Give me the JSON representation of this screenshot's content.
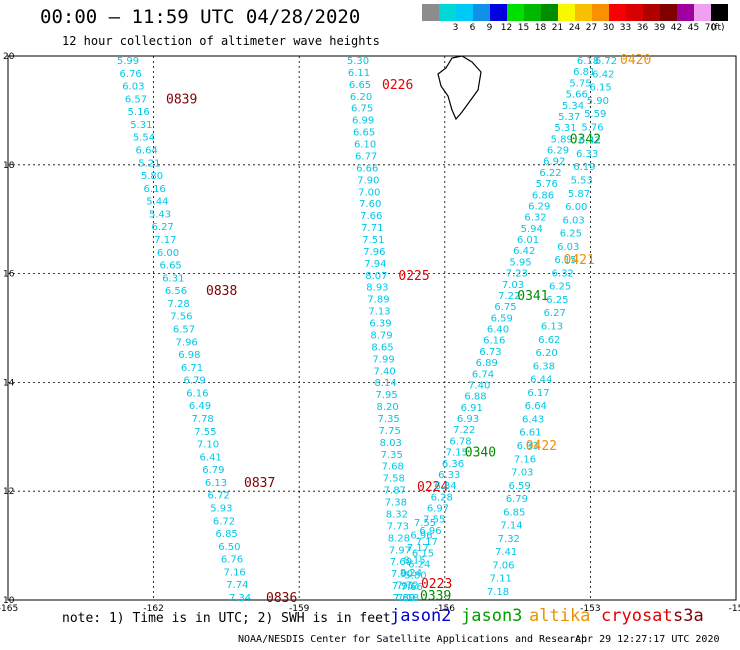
{
  "header": {
    "title": "00:00 – 11:59 UTC 04/28/2020",
    "subtitle": "12 hour collection of altimeter wave heights"
  },
  "legend": {
    "unit": "(ft)",
    "bins": [
      {
        "label": "",
        "color": "#8c8c8c"
      },
      {
        "label": "3",
        "color": "#00d8d8"
      },
      {
        "label": "6",
        "color": "#00c8f8"
      },
      {
        "label": "9",
        "color": "#1090e8"
      },
      {
        "label": "12",
        "color": "#0000e0"
      },
      {
        "label": "15",
        "color": "#00e000"
      },
      {
        "label": "18",
        "color": "#00b800"
      },
      {
        "label": "21",
        "color": "#008c00"
      },
      {
        "label": "24",
        "color": "#f8f800"
      },
      {
        "label": "27",
        "color": "#f8c000"
      },
      {
        "label": "30",
        "color": "#f89000"
      },
      {
        "label": "33",
        "color": "#f80000"
      },
      {
        "label": "36",
        "color": "#d80000"
      },
      {
        "label": "39",
        "color": "#b00000"
      },
      {
        "label": "42",
        "color": "#800000"
      },
      {
        "label": "45",
        "color": "#a000a0"
      },
      {
        "label": "70",
        "color": "#f0a0f0"
      },
      {
        "label": "",
        "color": "#000000"
      }
    ]
  },
  "map": {
    "x_ticks": [
      "-165",
      "-162",
      "-159",
      "-156",
      "-153",
      "-15"
    ],
    "y_ticks": [
      "20",
      "18",
      "16",
      "14",
      "12",
      "10"
    ],
    "grid": true,
    "value_color": "#00c8e8",
    "passes": [
      {
        "name": "altika-0839-0836",
        "values": [
          "5.99",
          "6.76",
          "6.03",
          "6.57",
          "5.16",
          "5.31",
          "5.54",
          "6.64",
          "5.21",
          "5.80",
          "6.16",
          "5.44",
          "5.43",
          "6.27",
          "7.17",
          "6.00",
          "6.65",
          "6.31",
          "6.56",
          "7.28",
          "7.56",
          "6.57",
          "7.96",
          "6.98",
          "6.71",
          "6.79",
          "6.16",
          "6.49",
          "7.78",
          "7.55",
          "7.10",
          "6.41",
          "6.79",
          "6.13",
          "6.72",
          "5.93",
          "6.72",
          "6.85",
          "6.50",
          "6.76",
          "7.16",
          "7.74",
          "7.34"
        ],
        "times": [
          {
            "label": "0839",
            "color": "#800000",
            "index": 3
          },
          {
            "label": "0838",
            "color": "#800000",
            "index": 18
          },
          {
            "label": "0837",
            "color": "#800000",
            "index": 33
          },
          {
            "label": "0836",
            "color": "#800000",
            "index": 42
          }
        ]
      },
      {
        "name": "jason-0226-0223",
        "values": [
          "5.30",
          "6.11",
          "6.65",
          "6.20",
          "6.75",
          "6.99",
          "6.65",
          "6.10",
          "6.77",
          "6.66",
          "7.90",
          "7.00",
          "7.60",
          "7.66",
          "7.71",
          "7.51",
          "7.96",
          "7.94",
          "8.07",
          "8.93",
          "7.89",
          "7.13",
          "6.39",
          "8.79",
          "8.65",
          "7.99",
          "7.40",
          "8.14",
          "7.95",
          "8.20",
          "7.35",
          "7.75",
          "8.03",
          "7.35",
          "7.68",
          "7.58",
          "7.87",
          "7.38",
          "8.32",
          "7.73",
          "8.28",
          "7.97",
          "7.60",
          "7.90",
          "7.90",
          "7.89"
        ],
        "times": [
          {
            "label": "0226",
            "color": "#e00000",
            "index": 2
          },
          {
            "label": "0225",
            "color": "#e00000",
            "index": 18
          },
          {
            "label": "0223",
            "color": "#e00000",
            "index": 44
          }
        ]
      },
      {
        "name": "jason-0224",
        "values": [
          "7.55",
          "6.96",
          "7.17",
          "8.15",
          "8.24",
          "7.72",
          "7.69"
        ],
        "times": [
          {
            "label": "0224",
            "color": "#e00000",
            "index": 0
          }
        ]
      },
      {
        "name": "jason3-0342-0340",
        "values": [
          "6.18",
          "6.81",
          "5.75",
          "5.66",
          "5.34",
          "5.37",
          "5.31",
          "5.89",
          "6.29",
          "6.92",
          "6.22",
          "5.76",
          "6.86",
          "6.29",
          "6.32",
          "5.94",
          "6.01",
          "6.42",
          "5.95",
          "7.23",
          "7.03",
          "7.22",
          "6.75",
          "6.59",
          "6.40",
          "6.16",
          "6.73",
          "6.89",
          "6.74",
          "7.40",
          "6.88",
          "6.91",
          "6.93",
          "7.22",
          "6.78",
          "7.15",
          "6.36",
          "6.33",
          "6.84",
          "6.28",
          "6.97",
          "7.55",
          "6.96",
          "7.17",
          "6.15",
          "6.24",
          "5.80",
          "7.66",
          "7.18"
        ],
        "times": [
          {
            "label": "0342",
            "color": "#008c00",
            "index": 7
          },
          {
            "label": "0341",
            "color": "#008c00",
            "index": 21
          },
          {
            "label": "0340",
            "color": "#008c00",
            "index": 35
          },
          {
            "label": "0339",
            "color": "#008c00",
            "index": 48
          }
        ]
      },
      {
        "name": "altika-0420-0422",
        "values": [
          "6.72",
          "6.42",
          "6.15",
          "5.90",
          "5.59",
          "5.76",
          "6.42",
          "6.33",
          "6.19",
          "5.53",
          "5.87",
          "6.00",
          "6.03",
          "6.25",
          "6.03",
          "6.15",
          "6.32",
          "6.25",
          "6.25",
          "6.27",
          "6.13",
          "6.62",
          "6.20",
          "6.38",
          "6.44",
          "6.17",
          "6.64",
          "6.43",
          "6.61",
          "6.93",
          "7.16",
          "7.03",
          "6.59",
          "6.79",
          "6.85",
          "7.14",
          "7.32",
          "7.41",
          "7.06",
          "7.11",
          "7.18"
        ],
        "times": [
          {
            "label": "0420",
            "color": "#f09000",
            "index": 0
          },
          {
            "label": "0421",
            "color": "#f09000",
            "index": 15
          },
          {
            "label": "0422",
            "color": "#f09000",
            "index": 29
          }
        ]
      }
    ]
  },
  "footer": {
    "note": "note: 1) Time is in UTC; 2) SWH is in feet",
    "satellites": [
      {
        "name": "jason2",
        "color": "#0000d0"
      },
      {
        "name": "jason3",
        "color": "#00a000"
      },
      {
        "name": "altika",
        "color": "#f09000"
      },
      {
        "name": "cryosat",
        "color": "#e00000"
      },
      {
        "name": "s3a",
        "color": "#800000"
      }
    ],
    "credit": "NOAA/NESDIS Center for Satellite Applications and Research",
    "timestamp": "Apr 29 12:27:17 UTC 2020"
  }
}
